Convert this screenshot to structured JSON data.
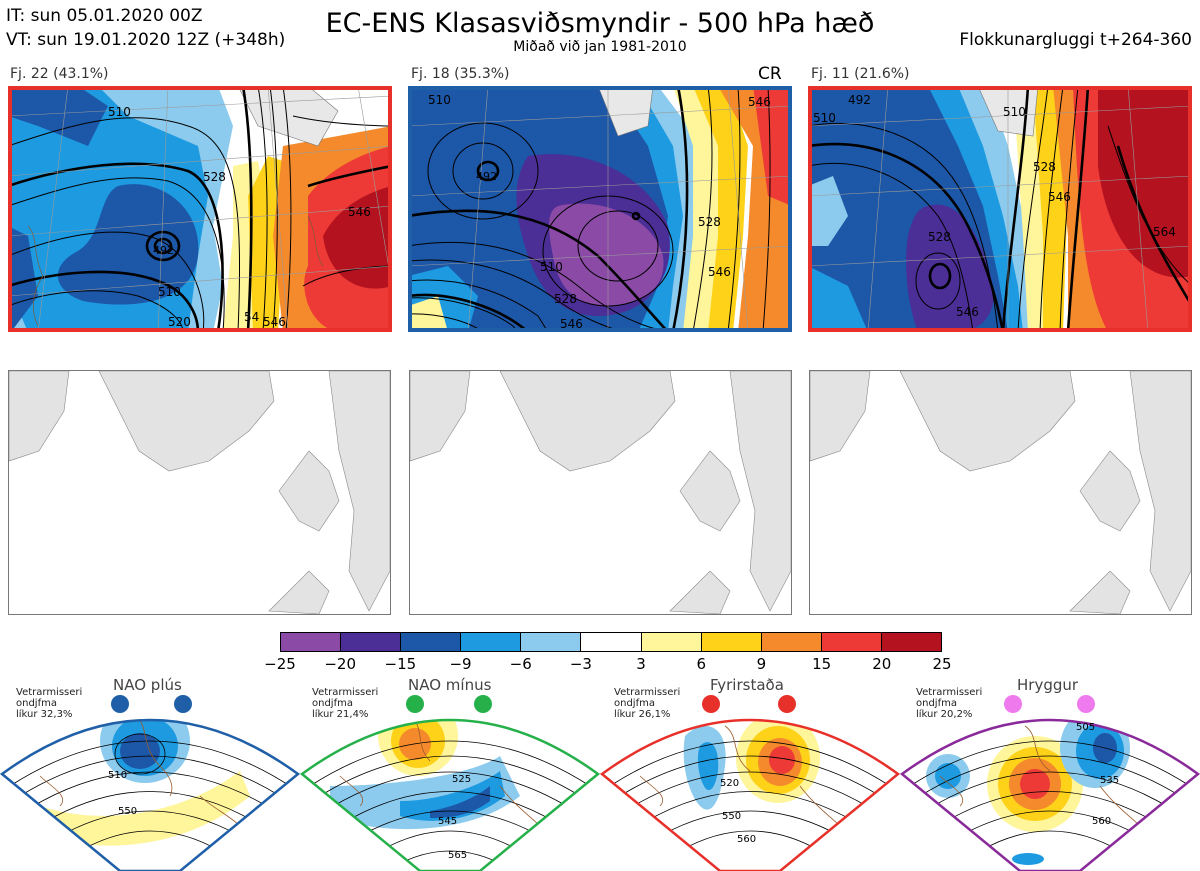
{
  "header": {
    "it_line": "IT: sun 05.01.2020 00Z",
    "vt_line": "VT: sun 19.01.2020 12Z  (+348h)",
    "title": "EC-ENS Klasasviðsmyndir - 500 hPa hæð",
    "subtitle": "Miðað við jan 1981-2010",
    "window": "Flokkunargluggi t+264-360"
  },
  "clusters": [
    {
      "label": "Fj. 22 (43.1%)",
      "tag": "",
      "frame_color": "#e8302a",
      "contour_labels": [
        "510",
        "492",
        "510",
        "520",
        "528",
        "546",
        "54",
        "546"
      ]
    },
    {
      "label": "Fj. 18 (35.3%)",
      "tag": "CR",
      "frame_color": "#1f5fa8",
      "contour_labels": [
        "510",
        "492",
        "510",
        "528",
        "546",
        "528",
        "546",
        "546"
      ]
    },
    {
      "label": "Fj. 11 (21.6%)",
      "tag": "",
      "frame_color": "#e8302a",
      "contour_labels": [
        "492",
        "510",
        "528",
        "546",
        "546",
        "510",
        "528",
        "564"
      ]
    }
  ],
  "colorbar": {
    "ticks": [
      "−25",
      "−20",
      "−15",
      "−9",
      "−6",
      "−3",
      "3",
      "6",
      "9",
      "15",
      "20",
      "25"
    ],
    "colors": [
      "#8a4aa6",
      "#4b2e96",
      "#1c57a8",
      "#1e9ae0",
      "#8ccbee",
      "#ffffff",
      "#fff59a",
      "#ffd21a",
      "#f48a2c",
      "#ee3a36",
      "#b3121e"
    ]
  },
  "regimes": [
    {
      "name": "NAO plús",
      "text_line1": "Vetrarmisseri",
      "text_line2": "ondjfma",
      "text_line3": "líkur 32,3%",
      "dot_color": "#1f5fa8",
      "frame_color": "#1f5fa8",
      "labels": [
        "510",
        "550"
      ]
    },
    {
      "name": "NAO mínus",
      "text_line1": "Vetrarmisseri",
      "text_line2": "ondjfma",
      "text_line3": "líkur 21,4%",
      "dot_color": "#25b04a",
      "frame_color": "#25b04a",
      "labels": [
        "525",
        "545",
        "565"
      ]
    },
    {
      "name": "Fyrirstaða",
      "text_line1": "Vetrarmisseri",
      "text_line2": "ondjfma",
      "text_line3": "líkur 26,1%",
      "dot_color": "#e8302a",
      "frame_color": "#e8302a",
      "labels": [
        "520",
        "550",
        "560"
      ]
    },
    {
      "name": "Hryggur",
      "text_line1": "Vetrarmisseri",
      "text_line2": "ondjfma",
      "text_line3": "líkur 20,2%",
      "dot_color": "#ee7aee",
      "frame_color": "#8a2a9a",
      "labels": [
        "505",
        "535",
        "560"
      ]
    }
  ]
}
